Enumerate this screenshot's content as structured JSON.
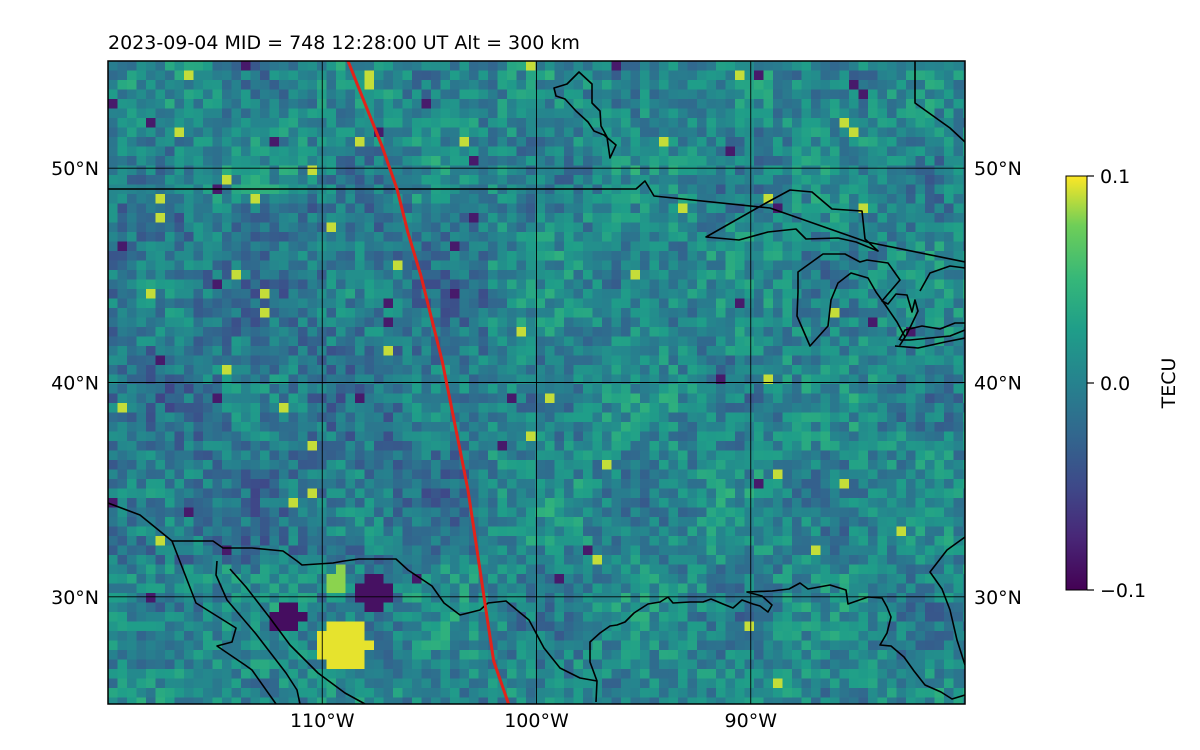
{
  "title": "2023-09-04  MID = 748    12:28:00  UT  Alt = 300 km",
  "map": {
    "lon_range": [
      -120,
      -80
    ],
    "lat_range": [
      25,
      55
    ],
    "lat_ticks": [
      {
        "value": 30,
        "label": "30°N"
      },
      {
        "value": 40,
        "label": "40°N"
      },
      {
        "value": 50,
        "label": "50°N"
      }
    ],
    "lon_ticks": [
      {
        "value": -110,
        "label": "110°W"
      },
      {
        "value": -100,
        "label": "100°W"
      },
      {
        "value": -90,
        "label": "90°W"
      }
    ],
    "gridlines": true,
    "track_color": "#e2231a",
    "coast_color": "#000000"
  },
  "colorbar": {
    "label": "TECU",
    "min": -0.1,
    "max": 0.1,
    "ticks": [
      {
        "value": 0.1,
        "label": "0.1"
      },
      {
        "value": 0.0,
        "label": "0.0"
      },
      {
        "value": -0.1,
        "label": "−0.1"
      }
    ],
    "colormap": "viridis"
  },
  "chart_data": {
    "type": "heatmap",
    "title": "2023-09-04  MID = 748    12:28:00  UT  Alt = 300 km",
    "xlabel": "",
    "ylabel": "",
    "x_ticks": [
      "110°W",
      "100°W",
      "90°W"
    ],
    "y_ticks": [
      "30°N",
      "40°N",
      "50°N"
    ],
    "xlim": [
      -120,
      -80
    ],
    "ylim": [
      25,
      55
    ],
    "colorbar_label": "TECU",
    "clim": [
      -0.1,
      0.1
    ],
    "grid": true,
    "track": [
      [
        -108.8,
        55
      ],
      [
        -108.0,
        53
      ],
      [
        -107.2,
        51
      ],
      [
        -106.5,
        49
      ],
      [
        -106.0,
        47
      ],
      [
        -105.4,
        45
      ],
      [
        -104.9,
        43
      ],
      [
        -104.4,
        41
      ],
      [
        -104.0,
        39
      ],
      [
        -103.6,
        37
      ],
      [
        -103.2,
        35
      ],
      [
        -102.9,
        33
      ],
      [
        -102.6,
        31
      ],
      [
        -102.3,
        29
      ],
      [
        -102.0,
        27
      ],
      [
        -101.3,
        25
      ]
    ]
  }
}
